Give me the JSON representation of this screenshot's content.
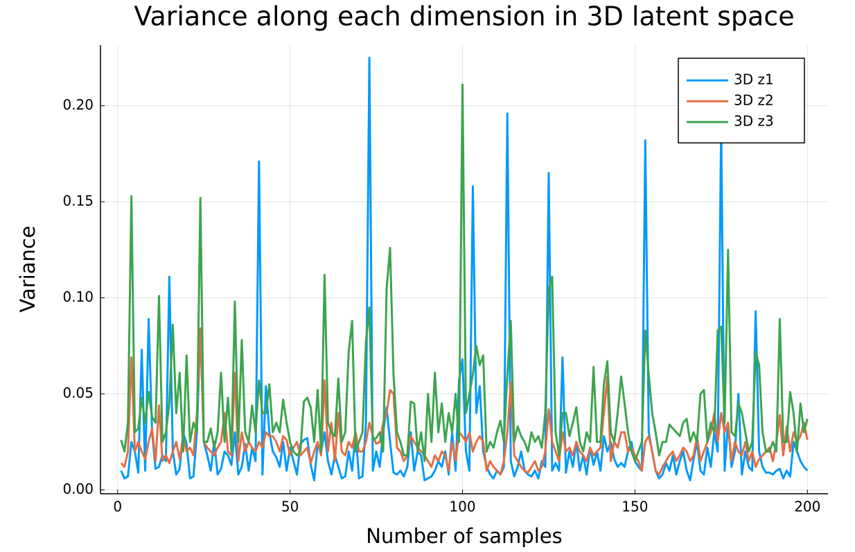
{
  "chart_data": {
    "type": "line",
    "title": "Variance along each dimension in 3D latent space",
    "x_label": "Number of samples",
    "y_label": "Variance",
    "x": [
      1,
      2,
      3,
      4,
      5,
      6,
      7,
      8,
      9,
      10,
      11,
      12,
      13,
      14,
      15,
      16,
      17,
      18,
      19,
      20,
      21,
      22,
      23,
      24,
      25,
      26,
      27,
      28,
      29,
      30,
      31,
      32,
      33,
      34,
      35,
      36,
      37,
      38,
      39,
      40,
      41,
      42,
      43,
      44,
      45,
      46,
      47,
      48,
      49,
      50,
      51,
      52,
      53,
      54,
      55,
      56,
      57,
      58,
      59,
      60,
      61,
      62,
      63,
      64,
      65,
      66,
      67,
      68,
      69,
      70,
      71,
      72,
      73,
      74,
      75,
      76,
      77,
      78,
      79,
      80,
      81,
      82,
      83,
      84,
      85,
      86,
      87,
      88,
      89,
      90,
      91,
      92,
      93,
      94,
      95,
      96,
      97,
      98,
      99,
      100,
      101,
      102,
      103,
      104,
      105,
      106,
      107,
      108,
      109,
      110,
      111,
      112,
      113,
      114,
      115,
      116,
      117,
      118,
      119,
      120,
      121,
      122,
      123,
      124,
      125,
      126,
      127,
      128,
      129,
      130,
      131,
      132,
      133,
      134,
      135,
      136,
      137,
      138,
      139,
      140,
      141,
      142,
      143,
      144,
      145,
      146,
      147,
      148,
      149,
      150,
      151,
      152,
      153,
      154,
      155,
      156,
      157,
      158,
      159,
      160,
      161,
      162,
      163,
      164,
      165,
      166,
      167,
      168,
      169,
      170,
      171,
      172,
      173,
      174,
      175,
      176,
      177,
      178,
      179,
      180,
      181,
      182,
      183,
      184,
      185,
      186,
      187,
      188,
      189,
      190,
      191,
      192,
      193,
      194,
      195,
      196,
      197,
      198,
      199,
      200
    ],
    "series": [
      {
        "name": "3D z1",
        "color": "#009af9",
        "values": [
          0.01,
          0.006,
          0.007,
          0.025,
          0.02,
          0.009,
          0.073,
          0.01,
          0.089,
          0.03,
          0.011,
          0.012,
          0.018,
          0.015,
          0.111,
          0.02,
          0.008,
          0.011,
          0.03,
          0.024,
          0.006,
          0.007,
          0.03,
          0.084,
          0.025,
          0.018,
          0.01,
          0.025,
          0.008,
          0.011,
          0.02,
          0.018,
          0.013,
          0.03,
          0.008,
          0.012,
          0.024,
          0.01,
          0.022,
          0.015,
          0.171,
          0.008,
          0.054,
          0.03,
          0.02,
          0.017,
          0.012,
          0.025,
          0.01,
          0.022,
          0.015,
          0.008,
          0.024,
          0.026,
          0.027,
          0.013,
          0.005,
          0.024,
          0.02,
          0.03,
          0.015,
          0.008,
          0.018,
          0.012,
          0.006,
          0.007,
          0.02,
          0.01,
          0.03,
          0.006,
          0.007,
          0.035,
          0.225,
          0.01,
          0.02,
          0.012,
          0.03,
          0.043,
          0.025,
          0.009,
          0.008,
          0.01,
          0.007,
          0.012,
          0.03,
          0.01,
          0.02,
          0.018,
          0.005,
          0.006,
          0.007,
          0.01,
          0.015,
          0.012,
          0.02,
          0.008,
          0.03,
          0.01,
          0.057,
          0.068,
          0.02,
          0.01,
          0.158,
          0.04,
          0.054,
          0.02,
          0.012,
          0.008,
          0.006,
          0.01,
          0.008,
          0.012,
          0.196,
          0.015,
          0.007,
          0.012,
          0.02,
          0.01,
          0.008,
          0.007,
          0.01,
          0.006,
          0.015,
          0.012,
          0.165,
          0.01,
          0.014,
          0.01,
          0.069,
          0.009,
          0.02,
          0.012,
          0.025,
          0.01,
          0.018,
          0.008,
          0.022,
          0.013,
          0.02,
          0.01,
          0.028,
          0.02,
          0.025,
          0.016,
          0.012,
          0.014,
          0.012,
          0.02,
          0.025,
          0.015,
          0.012,
          0.01,
          0.182,
          0.03,
          0.02,
          0.01,
          0.006,
          0.008,
          0.014,
          0.01,
          0.018,
          0.008,
          0.015,
          0.02,
          0.01,
          0.005,
          0.016,
          0.025,
          0.01,
          0.008,
          0.022,
          0.012,
          0.03,
          0.02,
          0.19,
          0.01,
          0.035,
          0.012,
          0.02,
          0.05,
          0.008,
          0.02,
          0.012,
          0.01,
          0.093,
          0.02,
          0.012,
          0.009,
          0.009,
          0.008,
          0.01,
          0.011,
          0.006,
          0.01,
          0.007,
          0.025,
          0.02,
          0.015,
          0.012,
          0.01
        ]
      },
      {
        "name": "3D z2",
        "color": "#e26f46",
        "values": [
          0.014,
          0.012,
          0.02,
          0.069,
          0.02,
          0.025,
          0.02,
          0.016,
          0.025,
          0.032,
          0.015,
          0.044,
          0.015,
          0.018,
          0.014,
          0.02,
          0.025,
          0.016,
          0.028,
          0.02,
          0.022,
          0.018,
          0.04,
          0.084,
          0.025,
          0.022,
          0.02,
          0.018,
          0.022,
          0.025,
          0.04,
          0.02,
          0.018,
          0.061,
          0.015,
          0.03,
          0.02,
          0.025,
          0.022,
          0.02,
          0.025,
          0.022,
          0.03,
          0.028,
          0.028,
          0.025,
          0.02,
          0.028,
          0.026,
          0.018,
          0.022,
          0.025,
          0.018,
          0.02,
          0.022,
          0.014,
          0.02,
          0.025,
          0.018,
          0.057,
          0.02,
          0.035,
          0.015,
          0.04,
          0.02,
          0.018,
          0.025,
          0.022,
          0.03,
          0.02,
          0.02,
          0.025,
          0.035,
          0.028,
          0.024,
          0.025,
          0.035,
          0.04,
          0.052,
          0.05,
          0.022,
          0.02,
          0.015,
          0.018,
          0.028,
          0.025,
          0.022,
          0.02,
          0.018,
          0.015,
          0.012,
          0.018,
          0.015,
          0.02,
          0.018,
          0.01,
          0.025,
          0.015,
          0.03,
          0.028,
          0.025,
          0.03,
          0.02,
          0.025,
          0.028,
          0.025,
          0.01,
          0.015,
          0.012,
          0.01,
          0.008,
          0.015,
          0.03,
          0.056,
          0.018,
          0.015,
          0.012,
          0.01,
          0.009,
          0.012,
          0.015,
          0.01,
          0.012,
          0.02,
          0.042,
          0.025,
          0.02,
          0.015,
          0.03,
          0.02,
          0.022,
          0.018,
          0.025,
          0.02,
          0.018,
          0.015,
          0.022,
          0.018,
          0.02,
          0.022,
          0.04,
          0.059,
          0.015,
          0.025,
          0.022,
          0.03,
          0.03,
          0.02,
          0.022,
          0.018,
          0.015,
          0.01,
          0.025,
          0.028,
          0.02,
          0.01,
          0.008,
          0.012,
          0.015,
          0.018,
          0.02,
          0.015,
          0.018,
          0.022,
          0.02,
          0.015,
          0.018,
          0.028,
          0.015,
          0.02,
          0.025,
          0.03,
          0.04,
          0.025,
          0.04,
          0.03,
          0.035,
          0.015,
          0.025,
          0.02,
          0.018,
          0.025,
          0.015,
          0.02,
          0.012,
          0.016,
          0.018,
          0.02,
          0.022,
          0.015,
          0.025,
          0.039,
          0.018,
          0.033,
          0.02,
          0.03,
          0.025,
          0.028,
          0.035,
          0.026
        ]
      },
      {
        "name": "3D z3",
        "color": "#3da44d",
        "values": [
          0.026,
          0.02,
          0.035,
          0.153,
          0.03,
          0.032,
          0.048,
          0.035,
          0.051,
          0.038,
          0.035,
          0.101,
          0.025,
          0.03,
          0.045,
          0.086,
          0.04,
          0.061,
          0.02,
          0.07,
          0.025,
          0.035,
          0.03,
          0.152,
          0.025,
          0.025,
          0.032,
          0.022,
          0.03,
          0.061,
          0.025,
          0.048,
          0.02,
          0.098,
          0.025,
          0.078,
          0.03,
          0.025,
          0.044,
          0.03,
          0.057,
          0.04,
          0.04,
          0.055,
          0.03,
          0.035,
          0.03,
          0.047,
          0.035,
          0.025,
          0.02,
          0.018,
          0.02,
          0.046,
          0.048,
          0.043,
          0.025,
          0.052,
          0.02,
          0.112,
          0.035,
          0.03,
          0.028,
          0.058,
          0.025,
          0.03,
          0.072,
          0.088,
          0.02,
          0.025,
          0.03,
          0.077,
          0.095,
          0.026,
          0.027,
          0.03,
          0.02,
          0.105,
          0.126,
          0.06,
          0.03,
          0.025,
          0.018,
          0.018,
          0.046,
          0.045,
          0.02,
          0.03,
          0.015,
          0.05,
          0.025,
          0.061,
          0.03,
          0.045,
          0.025,
          0.04,
          0.03,
          0.05,
          0.025,
          0.211,
          0.04,
          0.05,
          0.06,
          0.075,
          0.065,
          0.07,
          0.02,
          0.025,
          0.022,
          0.03,
          0.036,
          0.025,
          0.06,
          0.088,
          0.025,
          0.033,
          0.028,
          0.025,
          0.02,
          0.03,
          0.025,
          0.028,
          0.022,
          0.04,
          0.104,
          0.111,
          0.03,
          0.018,
          0.04,
          0.04,
          0.028,
          0.035,
          0.043,
          0.025,
          0.02,
          0.03,
          0.025,
          0.064,
          0.025,
          0.025,
          0.055,
          0.067,
          0.03,
          0.025,
          0.04,
          0.059,
          0.045,
          0.03,
          0.02,
          0.015,
          0.02,
          0.025,
          0.083,
          0.06,
          0.04,
          0.03,
          0.018,
          0.025,
          0.025,
          0.034,
          0.032,
          0.03,
          0.028,
          0.035,
          0.037,
          0.025,
          0.03,
          0.025,
          0.05,
          0.052,
          0.025,
          0.035,
          0.03,
          0.083,
          0.085,
          0.035,
          0.125,
          0.03,
          0.028,
          0.045,
          0.04,
          0.03,
          0.02,
          0.025,
          0.072,
          0.065,
          0.03,
          0.02,
          0.02,
          0.025,
          0.02,
          0.089,
          0.025,
          0.025,
          0.051,
          0.04,
          0.02,
          0.045,
          0.03,
          0.037
        ]
      }
    ],
    "xlim": [
      -4.97,
      205.97
    ],
    "ylim": [
      -0.002,
      0.2316
    ],
    "xticks": [
      0,
      50,
      100,
      150,
      200
    ],
    "yticks": [
      {
        "value": 0,
        "label": "0.00"
      },
      0.05,
      {
        "value": 0.1,
        "label": "0.10"
      },
      0.15,
      {
        "value": 0.2,
        "label": "0.20"
      }
    ],
    "grid": true,
    "legend": "topright"
  }
}
